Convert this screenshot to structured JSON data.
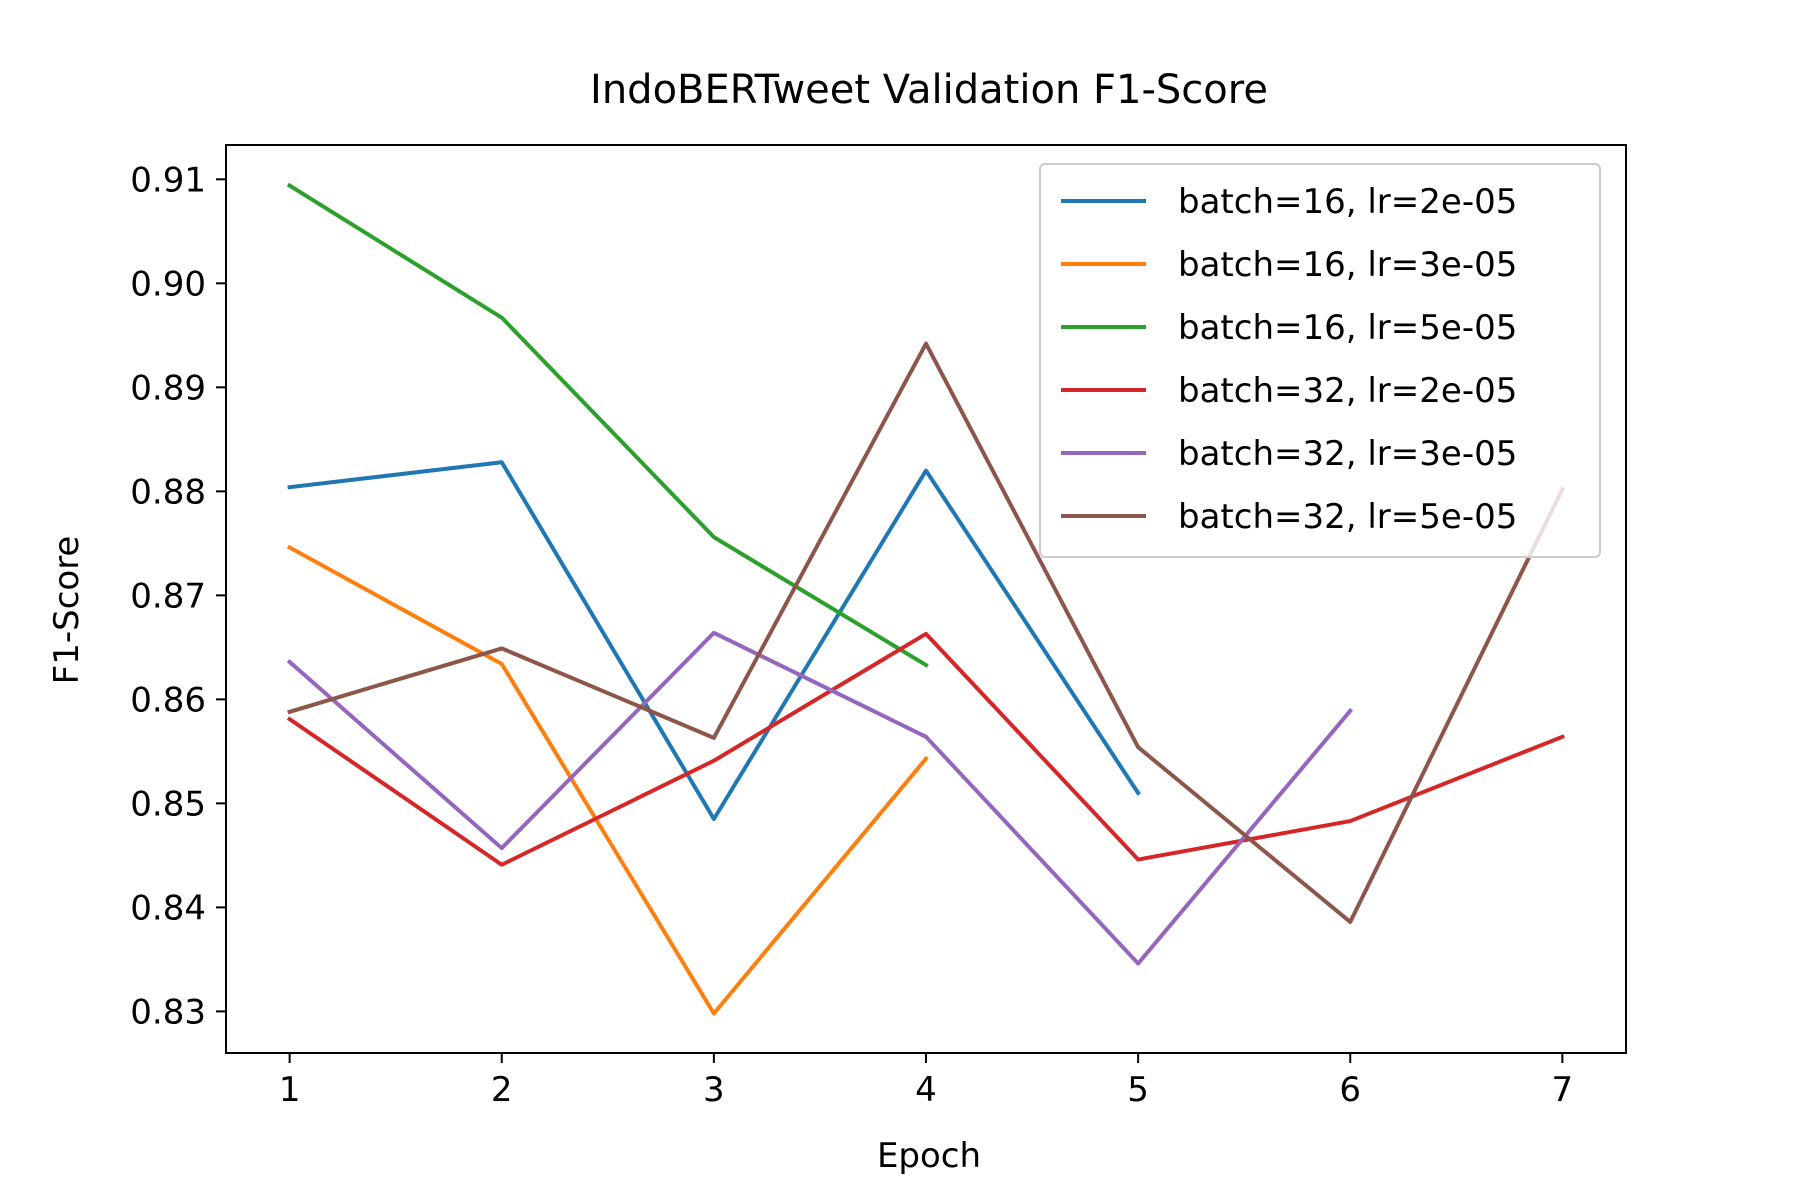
{
  "chart_data": {
    "type": "line",
    "title": "IndoBERTweet Validation F1-Score",
    "xlabel": "Epoch",
    "ylabel": "F1-Score",
    "xlim": [
      0.7,
      7.3
    ],
    "ylim": [
      0.826,
      0.9133
    ],
    "x_ticks": [
      1,
      2,
      3,
      4,
      5,
      6,
      7
    ],
    "y_ticks": [
      0.83,
      0.84,
      0.85,
      0.86,
      0.87,
      0.88,
      0.89,
      0.9,
      0.91
    ],
    "y_tick_labels": [
      "0.83",
      "0.84",
      "0.85",
      "0.86",
      "0.87",
      "0.88",
      "0.89",
      "0.90",
      "0.91"
    ],
    "grid": false,
    "legend_position": "top-right",
    "series": [
      {
        "name": "batch=16, lr=2e-05",
        "color": "#1f77b4",
        "x": [
          1,
          2,
          3,
          4,
          5
        ],
        "values": [
          0.8804,
          0.8828,
          0.8485,
          0.882,
          0.851
        ]
      },
      {
        "name": "batch=16, lr=3e-05",
        "color": "#ff7f0e",
        "x": [
          1,
          2,
          3,
          4
        ],
        "values": [
          0.8746,
          0.8634,
          0.8298,
          0.8543
        ]
      },
      {
        "name": "batch=16, lr=5e-05",
        "color": "#2ca02c",
        "x": [
          1,
          2,
          3,
          4
        ],
        "values": [
          0.9094,
          0.8967,
          0.8756,
          0.8633
        ]
      },
      {
        "name": "batch=32, lr=2e-05",
        "color": "#d62728",
        "x": [
          1,
          2,
          3,
          4,
          5,
          6,
          7
        ],
        "values": [
          0.8581,
          0.8441,
          0.8541,
          0.8663,
          0.8446,
          0.8483,
          0.8564
        ]
      },
      {
        "name": "batch=32, lr=3e-05",
        "color": "#9467bd",
        "x": [
          1,
          2,
          3,
          4,
          5,
          6
        ],
        "values": [
          0.8636,
          0.8457,
          0.8664,
          0.8564,
          0.8346,
          0.8589
        ]
      },
      {
        "name": "batch=32, lr=5e-05",
        "color": "#8c564b",
        "x": [
          1,
          2,
          3,
          4,
          5,
          6,
          7
        ],
        "values": [
          0.8588,
          0.8649,
          0.8563,
          0.8942,
          0.8554,
          0.8386,
          0.8802
        ]
      }
    ]
  }
}
